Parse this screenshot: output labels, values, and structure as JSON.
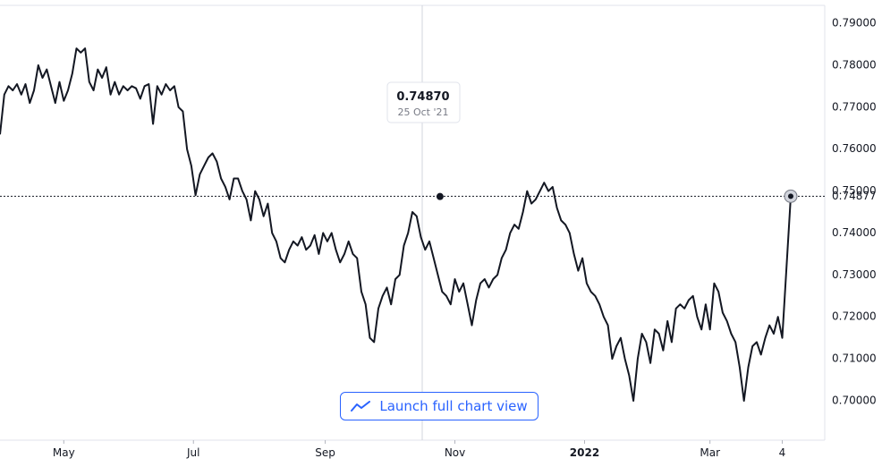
{
  "chart_data": {
    "type": "line",
    "title": "",
    "xlabel": "",
    "ylabel": "",
    "ylim": [
      0.69,
      0.79
    ],
    "y_ticks": [
      "0.79000",
      "0.78000",
      "0.77000",
      "0.76000",
      "0.75000",
      "0.74000",
      "0.73000",
      "0.72000",
      "0.71000",
      "0.70000"
    ],
    "x_ticks": [
      {
        "label": "May",
        "date": "2021-05-01"
      },
      {
        "label": "Jul",
        "date": "2021-07-01"
      },
      {
        "label": "Sep",
        "date": "2021-09-01"
      },
      {
        "label": "Nov",
        "date": "2021-11-01"
      },
      {
        "label": "2022",
        "date": "2022-01-01",
        "bold": true
      },
      {
        "label": "Mar",
        "date": "2022-03-01"
      },
      {
        "label": "4",
        "date": "2022-04-04"
      }
    ],
    "x_range": [
      "2021-04-01",
      "2022-04-24"
    ],
    "grid": false,
    "legend": "none",
    "line_color": "#131722",
    "hover": {
      "date": "2021-10-25",
      "value": 0.7487,
      "value_label": "0.74870",
      "date_label": "25 Oct '21"
    },
    "last": {
      "date": "2022-04-08",
      "value": 0.74877,
      "value_label": "0.74877"
    },
    "series": [
      {
        "points": [
          [
            "2021-04-01",
            0.7635
          ],
          [
            "2021-04-03",
            0.773
          ],
          [
            "2021-04-05",
            0.775
          ],
          [
            "2021-04-07",
            0.774
          ],
          [
            "2021-04-09",
            0.7755
          ],
          [
            "2021-04-11",
            0.773
          ],
          [
            "2021-04-13",
            0.7755
          ],
          [
            "2021-04-15",
            0.771
          ],
          [
            "2021-04-17",
            0.774
          ],
          [
            "2021-04-19",
            0.78
          ],
          [
            "2021-04-21",
            0.777
          ],
          [
            "2021-04-23",
            0.779
          ],
          [
            "2021-04-25",
            0.775
          ],
          [
            "2021-04-27",
            0.771
          ],
          [
            "2021-04-29",
            0.776
          ],
          [
            "2021-05-01",
            0.7715
          ],
          [
            "2021-05-03",
            0.774
          ],
          [
            "2021-05-05",
            0.778
          ],
          [
            "2021-05-07",
            0.784
          ],
          [
            "2021-05-09",
            0.783
          ],
          [
            "2021-05-11",
            0.784
          ],
          [
            "2021-05-13",
            0.776
          ],
          [
            "2021-05-15",
            0.774
          ],
          [
            "2021-05-17",
            0.779
          ],
          [
            "2021-05-19",
            0.777
          ],
          [
            "2021-05-21",
            0.7795
          ],
          [
            "2021-05-23",
            0.773
          ],
          [
            "2021-05-25",
            0.776
          ],
          [
            "2021-05-27",
            0.773
          ],
          [
            "2021-05-29",
            0.775
          ],
          [
            "2021-05-31",
            0.774
          ],
          [
            "2021-06-02",
            0.775
          ],
          [
            "2021-06-04",
            0.7745
          ],
          [
            "2021-06-06",
            0.772
          ],
          [
            "2021-06-08",
            0.775
          ],
          [
            "2021-06-10",
            0.7755
          ],
          [
            "2021-06-12",
            0.766
          ],
          [
            "2021-06-14",
            0.775
          ],
          [
            "2021-06-16",
            0.773
          ],
          [
            "2021-06-18",
            0.7755
          ],
          [
            "2021-06-20",
            0.774
          ],
          [
            "2021-06-22",
            0.775
          ],
          [
            "2021-06-24",
            0.77
          ],
          [
            "2021-06-26",
            0.769
          ],
          [
            "2021-06-28",
            0.76
          ],
          [
            "2021-06-30",
            0.756
          ],
          [
            "2021-07-02",
            0.749
          ],
          [
            "2021-07-04",
            0.754
          ],
          [
            "2021-07-06",
            0.756
          ],
          [
            "2021-07-08",
            0.758
          ],
          [
            "2021-07-10",
            0.759
          ],
          [
            "2021-07-12",
            0.757
          ],
          [
            "2021-07-14",
            0.753
          ],
          [
            "2021-07-16",
            0.751
          ],
          [
            "2021-07-18",
            0.748
          ],
          [
            "2021-07-20",
            0.753
          ],
          [
            "2021-07-22",
            0.753
          ],
          [
            "2021-07-24",
            0.75
          ],
          [
            "2021-07-26",
            0.748
          ],
          [
            "2021-07-28",
            0.743
          ],
          [
            "2021-07-30",
            0.75
          ],
          [
            "2021-08-01",
            0.748
          ],
          [
            "2021-08-03",
            0.744
          ],
          [
            "2021-08-05",
            0.747
          ],
          [
            "2021-08-07",
            0.74
          ],
          [
            "2021-08-09",
            0.738
          ],
          [
            "2021-08-11",
            0.734
          ],
          [
            "2021-08-13",
            0.733
          ],
          [
            "2021-08-15",
            0.736
          ],
          [
            "2021-08-17",
            0.738
          ],
          [
            "2021-08-19",
            0.737
          ],
          [
            "2021-08-21",
            0.739
          ],
          [
            "2021-08-23",
            0.736
          ],
          [
            "2021-08-25",
            0.737
          ],
          [
            "2021-08-27",
            0.7395
          ],
          [
            "2021-08-29",
            0.735
          ],
          [
            "2021-08-31",
            0.74
          ],
          [
            "2021-09-02",
            0.738
          ],
          [
            "2021-09-04",
            0.74
          ],
          [
            "2021-09-06",
            0.736
          ],
          [
            "2021-09-08",
            0.733
          ],
          [
            "2021-09-10",
            0.735
          ],
          [
            "2021-09-12",
            0.738
          ],
          [
            "2021-09-14",
            0.735
          ],
          [
            "2021-09-16",
            0.734
          ],
          [
            "2021-09-18",
            0.726
          ],
          [
            "2021-09-20",
            0.723
          ],
          [
            "2021-09-22",
            0.715
          ],
          [
            "2021-09-24",
            0.714
          ],
          [
            "2021-09-26",
            0.722
          ],
          [
            "2021-09-28",
            0.725
          ],
          [
            "2021-09-30",
            0.727
          ],
          [
            "2021-10-02",
            0.723
          ],
          [
            "2021-10-04",
            0.729
          ],
          [
            "2021-10-06",
            0.73
          ],
          [
            "2021-10-08",
            0.737
          ],
          [
            "2021-10-10",
            0.74
          ],
          [
            "2021-10-12",
            0.745
          ],
          [
            "2021-10-14",
            0.744
          ],
          [
            "2021-10-16",
            0.739
          ],
          [
            "2021-10-18",
            0.736
          ],
          [
            "2021-10-20",
            0.738
          ],
          [
            "2021-10-22",
            0.734
          ],
          [
            "2021-10-24",
            0.73
          ],
          [
            "2021-10-26",
            0.726
          ],
          [
            "2021-10-28",
            0.725
          ],
          [
            "2021-10-30",
            0.723
          ],
          [
            "2021-11-01",
            0.729
          ],
          [
            "2021-11-03",
            0.726
          ],
          [
            "2021-11-05",
            0.728
          ],
          [
            "2021-11-07",
            0.723
          ],
          [
            "2021-11-09",
            0.718
          ],
          [
            "2021-11-11",
            0.724
          ],
          [
            "2021-11-13",
            0.728
          ],
          [
            "2021-11-15",
            0.729
          ],
          [
            "2021-11-17",
            0.727
          ],
          [
            "2021-11-19",
            0.729
          ],
          [
            "2021-11-21",
            0.73
          ],
          [
            "2021-11-23",
            0.734
          ],
          [
            "2021-11-25",
            0.736
          ],
          [
            "2021-11-27",
            0.74
          ],
          [
            "2021-11-29",
            0.742
          ],
          [
            "2021-12-01",
            0.741
          ],
          [
            "2021-12-03",
            0.745
          ],
          [
            "2021-12-05",
            0.75
          ],
          [
            "2021-12-07",
            0.747
          ],
          [
            "2021-12-09",
            0.748
          ],
          [
            "2021-12-11",
            0.75
          ],
          [
            "2021-12-13",
            0.752
          ],
          [
            "2021-12-15",
            0.75
          ],
          [
            "2021-12-17",
            0.751
          ],
          [
            "2021-12-19",
            0.746
          ],
          [
            "2021-12-21",
            0.743
          ],
          [
            "2021-12-23",
            0.742
          ],
          [
            "2021-12-25",
            0.74
          ],
          [
            "2021-12-27",
            0.735
          ],
          [
            "2021-12-29",
            0.731
          ],
          [
            "2021-12-31",
            0.734
          ],
          [
            "2022-01-02",
            0.728
          ],
          [
            "2022-01-04",
            0.726
          ],
          [
            "2022-01-06",
            0.725
          ],
          [
            "2022-01-08",
            0.723
          ],
          [
            "2022-01-10",
            0.72
          ],
          [
            "2022-01-12",
            0.718
          ],
          [
            "2022-01-14",
            0.71
          ],
          [
            "2022-01-16",
            0.713
          ],
          [
            "2022-01-18",
            0.715
          ],
          [
            "2022-01-20",
            0.71
          ],
          [
            "2022-01-22",
            0.706
          ],
          [
            "2022-01-24",
            0.7
          ],
          [
            "2022-01-26",
            0.71
          ],
          [
            "2022-01-28",
            0.716
          ],
          [
            "2022-01-30",
            0.714
          ],
          [
            "2022-02-01",
            0.709
          ],
          [
            "2022-02-03",
            0.717
          ],
          [
            "2022-02-05",
            0.716
          ],
          [
            "2022-02-07",
            0.712
          ],
          [
            "2022-02-09",
            0.719
          ],
          [
            "2022-02-11",
            0.714
          ],
          [
            "2022-02-13",
            0.722
          ],
          [
            "2022-02-15",
            0.723
          ],
          [
            "2022-02-17",
            0.722
          ],
          [
            "2022-02-19",
            0.724
          ],
          [
            "2022-02-21",
            0.725
          ],
          [
            "2022-02-23",
            0.72
          ],
          [
            "2022-02-25",
            0.717
          ],
          [
            "2022-02-27",
            0.723
          ],
          [
            "2022-03-01",
            0.717
          ],
          [
            "2022-03-03",
            0.728
          ],
          [
            "2022-03-05",
            0.726
          ],
          [
            "2022-03-07",
            0.721
          ],
          [
            "2022-03-09",
            0.719
          ],
          [
            "2022-03-11",
            0.716
          ],
          [
            "2022-03-13",
            0.714
          ],
          [
            "2022-03-15",
            0.708
          ],
          [
            "2022-03-17",
            0.7
          ],
          [
            "2022-03-19",
            0.708
          ],
          [
            "2022-03-21",
            0.713
          ],
          [
            "2022-03-23",
            0.714
          ],
          [
            "2022-03-25",
            0.711
          ],
          [
            "2022-03-27",
            0.715
          ],
          [
            "2022-03-29",
            0.718
          ],
          [
            "2022-03-31",
            0.716
          ],
          [
            "2022-04-02",
            0.72
          ],
          [
            "2022-04-04",
            0.715
          ],
          [
            "2022-04-08",
            0.7487
          ]
        ]
      }
    ]
  }
}
